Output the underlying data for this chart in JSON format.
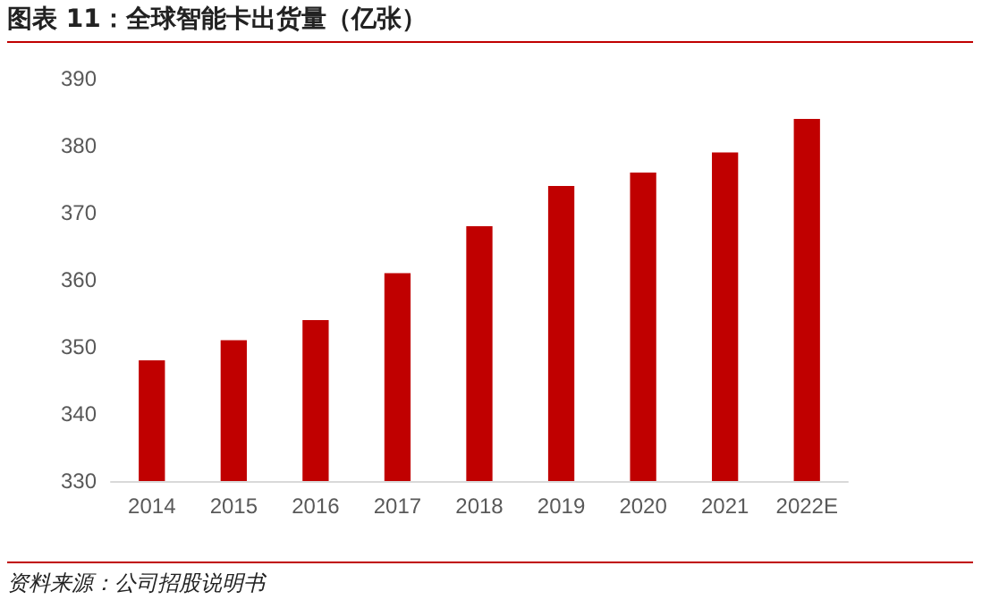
{
  "chart_data": {
    "type": "bar",
    "title": "图表 11：全球智能卡出货量（亿张）",
    "categories": [
      "2014",
      "2015",
      "2016",
      "2017",
      "2018",
      "2019",
      "2020",
      "2021",
      "2022E"
    ],
    "values": [
      348,
      351,
      354,
      361,
      368,
      374,
      376,
      379,
      384
    ],
    "color": "#c00000",
    "ylim": [
      330,
      390
    ],
    "yticks": [
      330,
      340,
      350,
      360,
      370,
      380,
      390
    ],
    "grid": false,
    "annotations": [
      "资料来源：公司招股说明书"
    ]
  }
}
